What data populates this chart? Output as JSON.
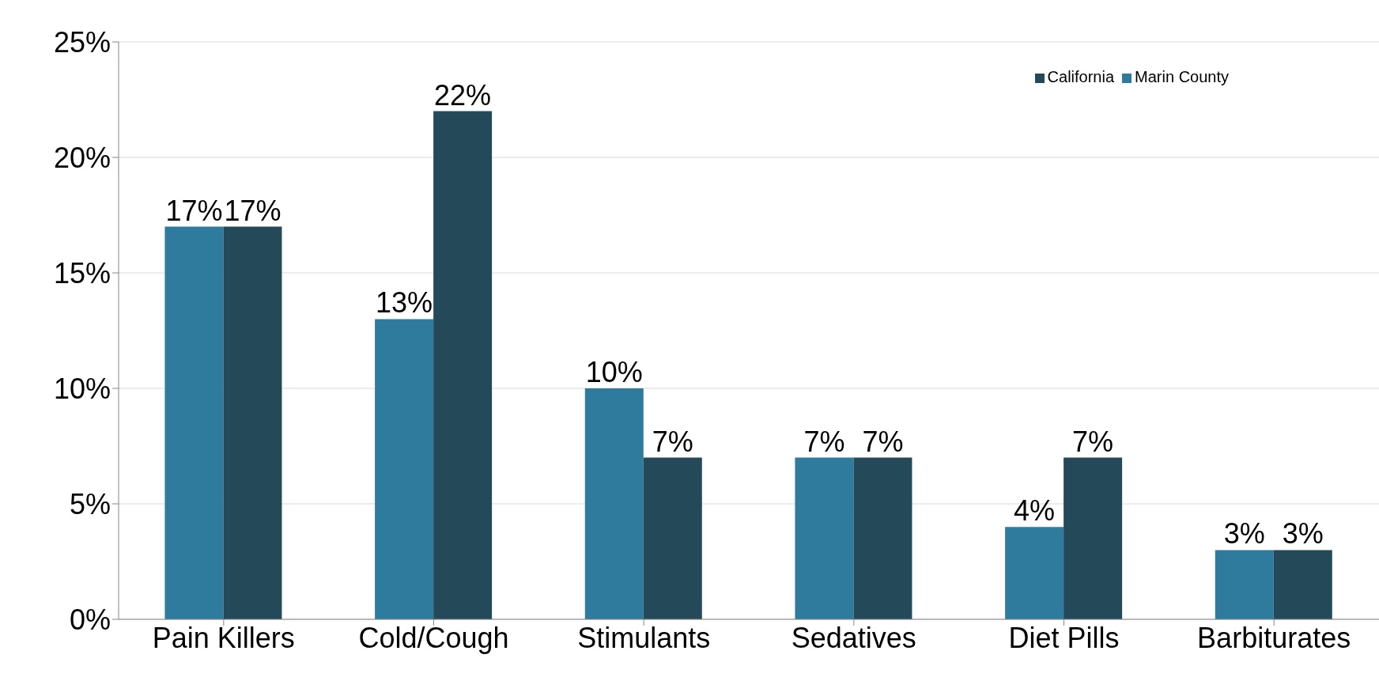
{
  "chart_data": {
    "type": "bar",
    "categories": [
      "Pain Killers",
      "Cold/Cough",
      "Stimulants",
      "Sedatives",
      "Diet Pills",
      "Barbiturates"
    ],
    "series": [
      {
        "name": "Marin County",
        "color": "#2e7b9e",
        "values": [
          17,
          13,
          10,
          7,
          4,
          3
        ],
        "value_labels": [
          "17%",
          "13%",
          "10%",
          "7%",
          "4%",
          "3%"
        ]
      },
      {
        "name": "California",
        "color": "#244a5a",
        "values": [
          17,
          22,
          7,
          7,
          7,
          3
        ],
        "value_labels": [
          "17%",
          "22%",
          "7%",
          "7%",
          "7%",
          "3%"
        ]
      }
    ],
    "ylim": [
      0,
      25
    ],
    "yticks": [
      {
        "value": 0,
        "label": "0%"
      },
      {
        "value": 5,
        "label": "5%"
      },
      {
        "value": 10,
        "label": "10%"
      },
      {
        "value": 15,
        "label": "15%"
      },
      {
        "value": 20,
        "label": "20%"
      },
      {
        "value": 25,
        "label": "25%"
      }
    ],
    "grid": "y",
    "legend": "top right"
  }
}
